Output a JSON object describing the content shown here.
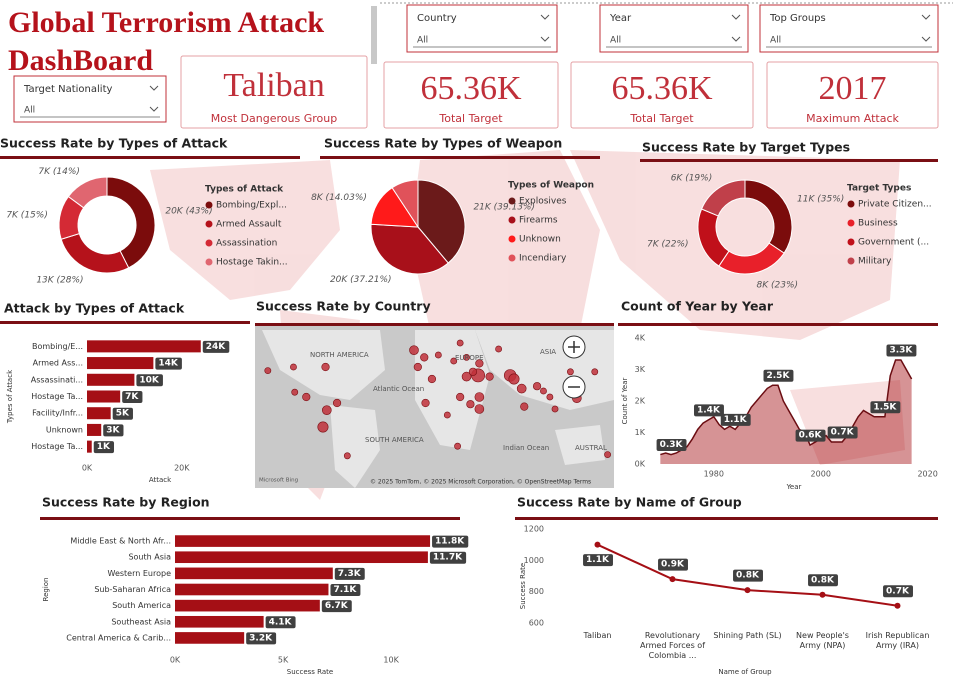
{
  "header": {
    "title": "Global Terrorism Attack DashBoard"
  },
  "filters": [
    {
      "label": "Country",
      "value": "All"
    },
    {
      "label": "Year",
      "value": "All"
    },
    {
      "label": "Top Groups",
      "value": "All"
    },
    {
      "label": "Target Nationality",
      "value": "All"
    }
  ],
  "kpis": [
    {
      "value": "Taliban",
      "label": "Most Dangerous Group"
    },
    {
      "value": "65.36K",
      "label": "Total Target"
    },
    {
      "value": "65.36K",
      "label": "Total Target"
    },
    {
      "value": "2017",
      "label": "Maximum Attack"
    }
  ],
  "chart_data": [
    {
      "type": "donut",
      "title": "Success Rate by Types of Attack",
      "legend_title": "Types of Attack",
      "categories": [
        "Bombing/Expl...",
        "Armed Assault",
        "Assassination",
        "Hostage Takin..."
      ],
      "values": [
        20000,
        13000,
        7000,
        7000
      ],
      "value_labels": [
        "20K (43%)",
        "13K (28%)",
        "7K (15%)",
        "7K (14%)"
      ],
      "colors": [
        "#7b0c0c",
        "#b5121b",
        "#d42a35",
        "#e06670"
      ]
    },
    {
      "type": "pie",
      "title": "Success Rate by Types of Weapon",
      "legend_title": "Types of Weapon",
      "categories": [
        "Explosives",
        "Firearms",
        "Unknown",
        "Incendiary"
      ],
      "values": [
        21000,
        20000,
        8000,
        5000
      ],
      "value_labels": [
        "21K (39.13%)",
        "20K (37.21%)",
        "8K (14.03%)",
        null
      ],
      "colors": [
        "#6b1a1a",
        "#a8101a",
        "#ff1a1a",
        "#e0525a"
      ]
    },
    {
      "type": "donut",
      "title": "Success Rate by Target Types",
      "legend_title": "Target Types",
      "categories": [
        "Private Citizen...",
        "Business",
        "Government (...",
        "Military"
      ],
      "values": [
        11000,
        8000,
        7000,
        6000
      ],
      "value_labels": [
        "11K (35%)",
        "8K (23%)",
        "7K (22%)",
        "6K (19%)"
      ],
      "colors": [
        "#7b0c0c",
        "#e8202a",
        "#c0101a",
        "#c0404a"
      ]
    },
    {
      "type": "hbar",
      "title": "Attack by Types of Attack",
      "x_label": "Attack",
      "y_label": "Types of Attack",
      "categories": [
        "Bombing/E...",
        "Armed Ass...",
        "Assassinati...",
        "Hostage Ta...",
        "Facility/Infr...",
        "Unknown",
        "Hostage Ta..."
      ],
      "values": [
        24000,
        14000,
        10000,
        7000,
        5000,
        3000,
        1000
      ],
      "value_labels": [
        "24K",
        "14K",
        "10K",
        "7K",
        "5K",
        "3K",
        "1K"
      ],
      "color": "#a50f15",
      "xlim": [
        0,
        27000
      ],
      "xticks": [
        {
          "value": 0,
          "label": "0K"
        },
        {
          "value": 20000,
          "label": "20K"
        }
      ]
    },
    {
      "type": "map",
      "title": "Success Rate by Country",
      "region_labels": [
        "NORTH AMERICA",
        "EUROPE",
        "ASIA",
        "Atlantic Ocean",
        "SOUTH AMERICA",
        "Indian Ocean",
        "AUSTRAL"
      ],
      "attribution": "© 2025 TomTom, © 2025 Microsoft Corporation, © OpenStreetMap Terms",
      "provider": "Microsoft Bing",
      "color": "#c0303a",
      "points": {
        "lon": [
          -74,
          -77,
          -66,
          -58,
          -90,
          -99,
          -100,
          -75,
          -120,
          -3,
          2,
          13,
          -6,
          25,
          35,
          30,
          3,
          30,
          45,
          20,
          28,
          8,
          38,
          44,
          35,
          40,
          53,
          45,
          69,
          72,
          78,
          80,
          90,
          121,
          100,
          104,
          116,
          135,
          95,
          45,
          60,
          145
        ],
        "lat": [
          4,
          -10,
          10,
          -34,
          15,
          19,
          40,
          40,
          37,
          40,
          48,
          50,
          54,
          45,
          48,
          60,
          10,
          15,
          5,
          0,
          -26,
          30,
          9,
          33,
          32,
          36,
          32,
          15,
          33,
          30,
          22,
          7,
          24,
          14,
          15,
          5,
          36,
          36,
          20,
          43,
          55,
          -33
        ],
        "size": [
          5,
          6,
          4,
          3,
          4,
          3,
          3,
          4,
          3,
          4,
          4,
          3,
          5,
          3,
          3,
          3,
          4,
          4,
          5,
          3,
          3,
          4,
          4,
          8,
          5,
          4,
          4,
          5,
          7,
          6,
          5,
          4,
          4,
          5,
          3,
          3,
          3,
          3,
          3,
          4,
          3,
          3
        ]
      }
    },
    {
      "type": "area",
      "title": "Count of Year by Year",
      "x_label": "Year",
      "y_label": "Count of Year",
      "x": [
        1970,
        1971,
        1972,
        1973,
        1974,
        1975,
        1976,
        1977,
        1978,
        1979,
        1980,
        1981,
        1982,
        1983,
        1984,
        1985,
        1986,
        1987,
        1988,
        1989,
        1990,
        1991,
        1992,
        1993,
        1994,
        1995,
        1996,
        1997,
        1998,
        1999,
        2000,
        2001,
        2002,
        2003,
        2004,
        2005,
        2006,
        2007,
        2008,
        2009,
        2010,
        2011,
        2012,
        2013,
        2014,
        2015,
        2016,
        2017
      ],
      "values": [
        300,
        350,
        300,
        350,
        450,
        550,
        800,
        1100,
        1300,
        1400,
        1500,
        1250,
        1100,
        1200,
        1100,
        1300,
        1500,
        1800,
        2000,
        2200,
        2400,
        2500,
        2500,
        2000,
        1700,
        1400,
        1100,
        1000,
        600,
        700,
        800,
        900,
        700,
        700,
        700,
        900,
        1200,
        1500,
        1700,
        1600,
        1500,
        1500,
        1500,
        2800,
        3300,
        3300,
        3000,
        2700
      ],
      "value_labels": [
        null,
        null,
        "0.3K",
        null,
        null,
        null,
        null,
        null,
        null,
        "1.4K",
        null,
        null,
        null,
        null,
        "1.1K",
        null,
        null,
        null,
        null,
        null,
        null,
        null,
        "2.5K",
        null,
        null,
        null,
        null,
        null,
        "0.6K",
        null,
        null,
        null,
        null,
        null,
        "0.7K",
        null,
        null,
        null,
        null,
        null,
        null,
        null,
        "1.5K",
        null,
        null,
        "3.3K",
        null,
        null
      ],
      "color": "#a50f15",
      "xlim": [
        1969,
        2021
      ],
      "xticks": [
        1980,
        2000,
        2020
      ],
      "ylim": [
        0,
        4000
      ],
      "yticks": [
        {
          "value": 0,
          "label": "0K"
        },
        {
          "value": 1000,
          "label": "1K"
        },
        {
          "value": 2000,
          "label": "2K"
        },
        {
          "value": 3000,
          "label": "3K"
        },
        {
          "value": 4000,
          "label": "4K"
        }
      ]
    },
    {
      "type": "hbar",
      "title": "Success Rate by Region",
      "x_label": "Success Rate",
      "y_label": "Region",
      "categories": [
        "Middle East & North Afr...",
        "South Asia",
        "Western Europe",
        "Sub-Saharan Africa",
        "South America",
        "Southeast Asia",
        "Central America & Carib..."
      ],
      "values": [
        11800,
        11700,
        7300,
        7100,
        6700,
        4100,
        3200
      ],
      "value_labels": [
        "11.8K",
        "11.7K",
        "7.3K",
        "7.1K",
        "6.7K",
        "4.1K",
        "3.2K"
      ],
      "color": "#a50f15",
      "xlim": [
        0,
        13000
      ],
      "xticks": [
        {
          "value": 0,
          "label": "0K"
        },
        {
          "value": 5000,
          "label": "5K"
        },
        {
          "value": 10000,
          "label": "10K"
        }
      ]
    },
    {
      "type": "line",
      "title": "Success Rate by Name of Group",
      "x_label": "Name of Group",
      "y_label": "Success Rate",
      "categories": [
        "Taliban",
        "Revolutionary Armed Forces of Colombia ...",
        "Shining Path (SL)",
        "New People's Army (NPA)",
        "Irish Republican Army (IRA)"
      ],
      "values": [
        1100,
        880,
        810,
        780,
        710
      ],
      "value_labels": [
        "1.1K",
        "0.9K",
        "0.8K",
        "0.8K",
        "0.7K"
      ],
      "color": "#a50f15",
      "ylim": [
        600,
        1200
      ],
      "yticks": [
        600,
        800,
        1000,
        1200
      ]
    }
  ]
}
